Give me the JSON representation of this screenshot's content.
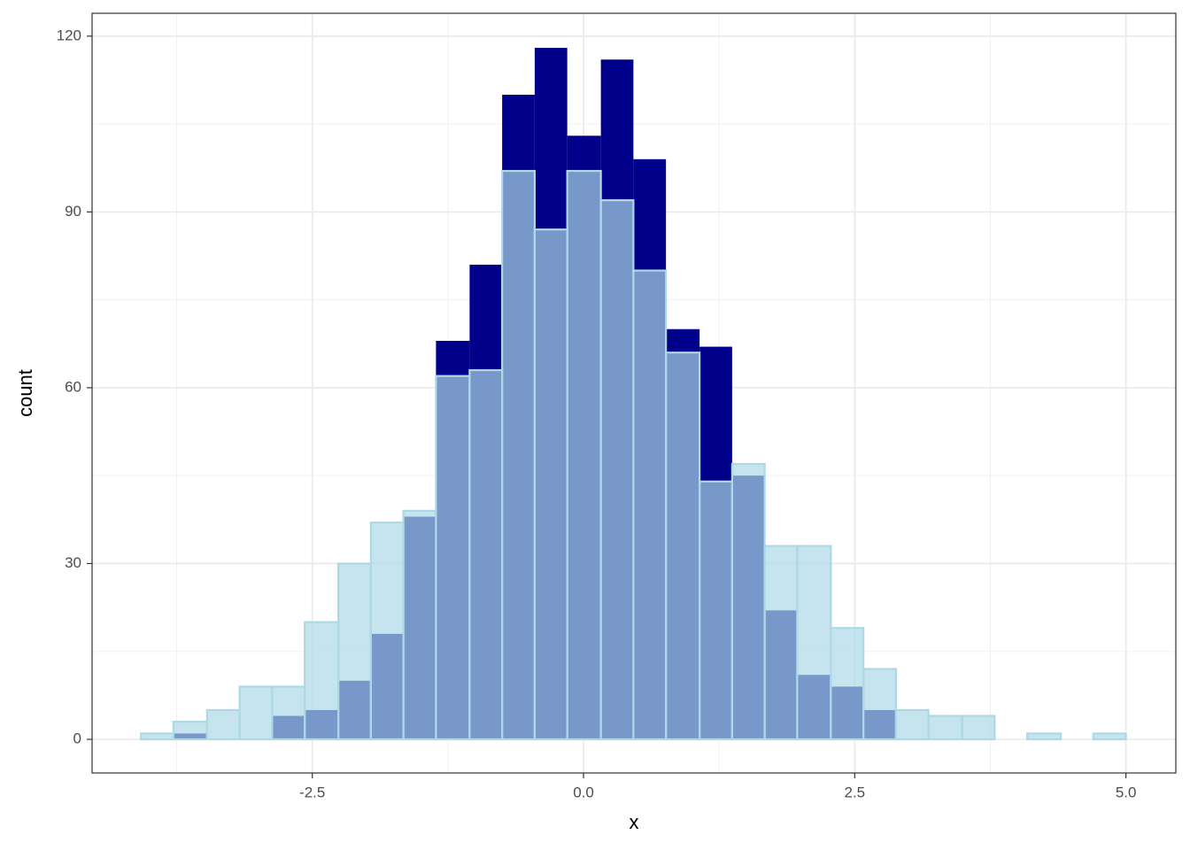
{
  "chart_data": {
    "type": "histogram",
    "x_label": "x",
    "y_label": "count",
    "bins": [
      -4.08,
      -3.78,
      -3.47,
      -3.17,
      -2.87,
      -2.57,
      -2.26,
      -1.96,
      -1.66,
      -1.36,
      -1.05,
      -0.75,
      -0.45,
      -0.15,
      0.16,
      0.46,
      0.76,
      1.07,
      1.37,
      1.67,
      1.97,
      2.28,
      2.58,
      2.88,
      3.18,
      3.49,
      3.79,
      4.09,
      4.4,
      4.7,
      5.0
    ],
    "series": [
      {
        "color": "#00008b",
        "opacity": 1,
        "values": [
          0,
          1,
          0,
          0,
          4,
          5,
          10,
          18,
          38,
          68,
          81,
          110,
          118,
          103,
          116,
          99,
          70,
          67,
          45,
          22,
          11,
          9,
          5,
          0,
          0,
          0,
          0,
          0,
          0,
          0
        ]
      },
      {
        "color": "#add8e6",
        "opacity": 0.7,
        "values": [
          1,
          3,
          5,
          9,
          9,
          20,
          30,
          37,
          39,
          62,
          63,
          97,
          87,
          97,
          92,
          80,
          66,
          44,
          47,
          33,
          33,
          19,
          12,
          5,
          4,
          4,
          0,
          1,
          0,
          1
        ]
      }
    ],
    "xlim": [
      -4.53,
      5.46
    ],
    "ylim": [
      -5.74,
      123.9
    ],
    "xticks": [
      -2.5,
      {
        "value": 0,
        "label": "0.0"
      },
      2.5,
      {
        "value": 5,
        "label": "5.0"
      }
    ],
    "yticks": [
      0,
      30,
      60,
      90,
      120
    ],
    "grid": true
  }
}
